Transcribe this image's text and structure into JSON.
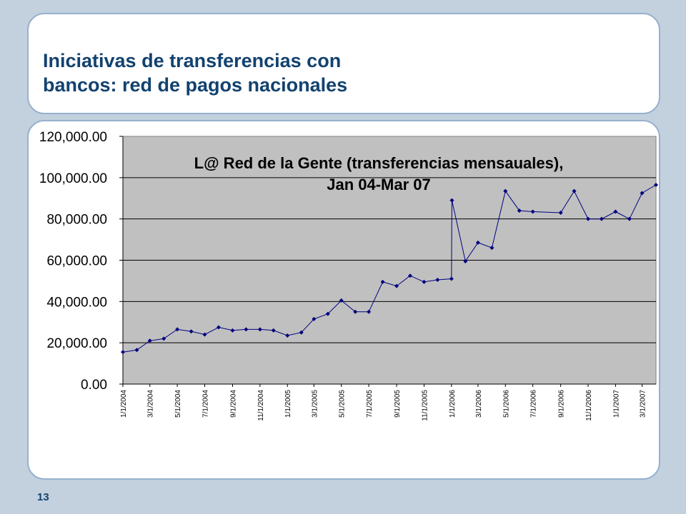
{
  "slide": {
    "title_line1": "Iniciativas  de transferencias con",
    "title_line2": "bancos: red de pagos nacionales",
    "number": "13"
  },
  "colors": {
    "background": "#c3d1df",
    "title": "#12426f",
    "plot_area": "#c0c0c0",
    "series": "#000080"
  },
  "chart_data": {
    "type": "line",
    "title_line1": "L@ Red de la Gente (transferencias mensauales),",
    "title_line2": "Jan 04-Mar 07",
    "xlabel": "",
    "ylabel": "",
    "ylim": [
      0,
      120000
    ],
    "yticks": [
      "0.00",
      "20,000.00",
      "40,000.00",
      "60,000.00",
      "80,000.00",
      "100,000.00",
      "120,000.00"
    ],
    "grid": "horizontal",
    "legend": "none",
    "xtick_labels": [
      "1/1/2004",
      "3/1/2004",
      "5/1/2004",
      "7/1/2004",
      "9/1/2004",
      "11/1/2004",
      "1/1/2005",
      "3/1/2005",
      "5/1/2005",
      "7/1/2005",
      "9/1/2005",
      "11/1/2005",
      "1/1/2006",
      "3/1/2006",
      "5/1/2006",
      "7/1/2006",
      "9/1/2006",
      "11/1/2006",
      "1/1/2007",
      "3/1/2007"
    ],
    "series": [
      {
        "x": [
          "2004-01-01",
          "2004-02-01",
          "2004-03-01",
          "2004-04-01",
          "2004-05-01",
          "2004-06-01",
          "2004-07-01",
          "2004-08-01",
          "2004-09-01",
          "2004-10-01",
          "2004-11-01",
          "2004-12-01",
          "2005-01-01",
          "2005-02-01",
          "2005-03-01",
          "2005-04-01",
          "2005-05-01",
          "2005-06-01",
          "2005-07-01",
          "2005-08-01",
          "2005-09-01",
          "2005-10-01",
          "2005-11-01",
          "2005-12-01",
          "2006-01-01",
          "2006-01-02",
          "2006-02-01",
          "2006-03-01",
          "2006-04-01",
          "2006-05-01",
          "2006-06-01",
          "2006-07-01",
          "2006-09-01",
          "2006-10-01",
          "2006-11-01",
          "2006-12-01",
          "2007-01-01",
          "2007-02-01",
          "2007-03-01",
          "2007-04-01"
        ],
        "values": [
          15500,
          16500,
          21000,
          22000,
          26500,
          25500,
          24000,
          27500,
          26000,
          26500,
          26500,
          26000,
          23500,
          25000,
          31500,
          34000,
          40500,
          35000,
          35000,
          49500,
          47500,
          52500,
          49500,
          50500,
          51000,
          89000,
          59500,
          68500,
          66000,
          93500,
          84000,
          83500,
          83000,
          93500,
          80000,
          80000,
          83500,
          80000,
          92500,
          96500
        ]
      }
    ]
  }
}
